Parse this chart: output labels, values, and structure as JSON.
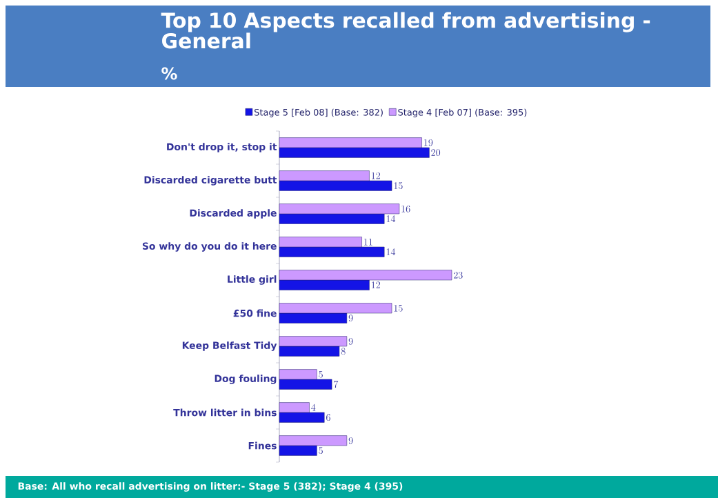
{
  "chart_data": {
    "type": "bar",
    "orientation": "horizontal",
    "title": "Top 10 Aspects recalled from advertising - General",
    "subtitle": "%",
    "categories": [
      "Don't drop it, stop it",
      "Discarded cigarette butt",
      "Discarded apple",
      "So why do you do it here",
      "Little girl",
      "£50 fine",
      "Keep Belfast Tidy",
      "Dog fouling",
      "Throw litter in bins",
      "Fines"
    ],
    "series": [
      {
        "name": "Stage 5 [Feb 08] (Base: 382)",
        "color": "#1414e6",
        "values": [
          20,
          15,
          14,
          14,
          12,
          9,
          8,
          7,
          6,
          5
        ]
      },
      {
        "name": "Stage 4 [Feb 07] (Base: 395)",
        "color": "#cc99ff",
        "values": [
          19,
          12,
          16,
          11,
          23,
          15,
          9,
          5,
          4,
          9
        ]
      }
    ],
    "data_labels": true,
    "legend": "top",
    "annotations": [
      "Base: All who recall advertising on litter:- Stage 5 (382); Stage 4 (395)"
    ]
  }
}
